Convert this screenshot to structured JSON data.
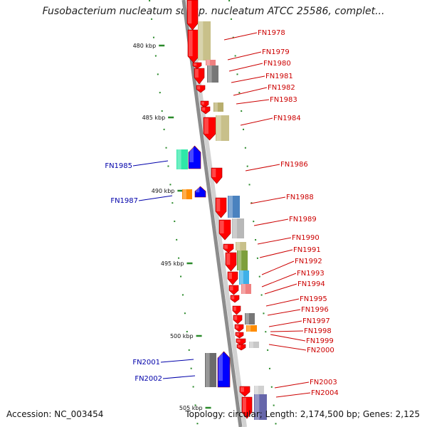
{
  "title": "Fusobacterium nucleatum subsp. nucleatum ATCC 25586, complet...",
  "footer": {
    "accession": "Accession: NC_003454",
    "summary": "Topology: circular; Length: 2,174,500 bp; Genes: 2,125"
  },
  "colors": {
    "forward_label": "#cc0000",
    "reverse_label": "#0000aa",
    "forward_gene": "#ff0000",
    "reverse_gene": "#0000ff",
    "tick": "#2a8a2a",
    "backbone": "#8c8c8c"
  },
  "kbp_ticks": [
    "480 kbp",
    "485 kbp",
    "490 kbp",
    "495 kbp",
    "500 kbp",
    "505 kbp"
  ],
  "genes_forward": [
    "FN1978",
    "FN1979",
    "FN1980",
    "FN1981",
    "FN1982",
    "FN1983",
    "FN1984",
    "FN1986",
    "FN1988",
    "FN1989",
    "FN1990",
    "FN1991",
    "FN1992",
    "FN1993",
    "FN1994",
    "FN1995",
    "FN1996",
    "FN1997",
    "FN1998",
    "FN1999",
    "FN2000",
    "FN2003",
    "FN2004"
  ],
  "genes_reverse": [
    "FN1985",
    "FN1987",
    "FN2001",
    "FN2002"
  ]
}
